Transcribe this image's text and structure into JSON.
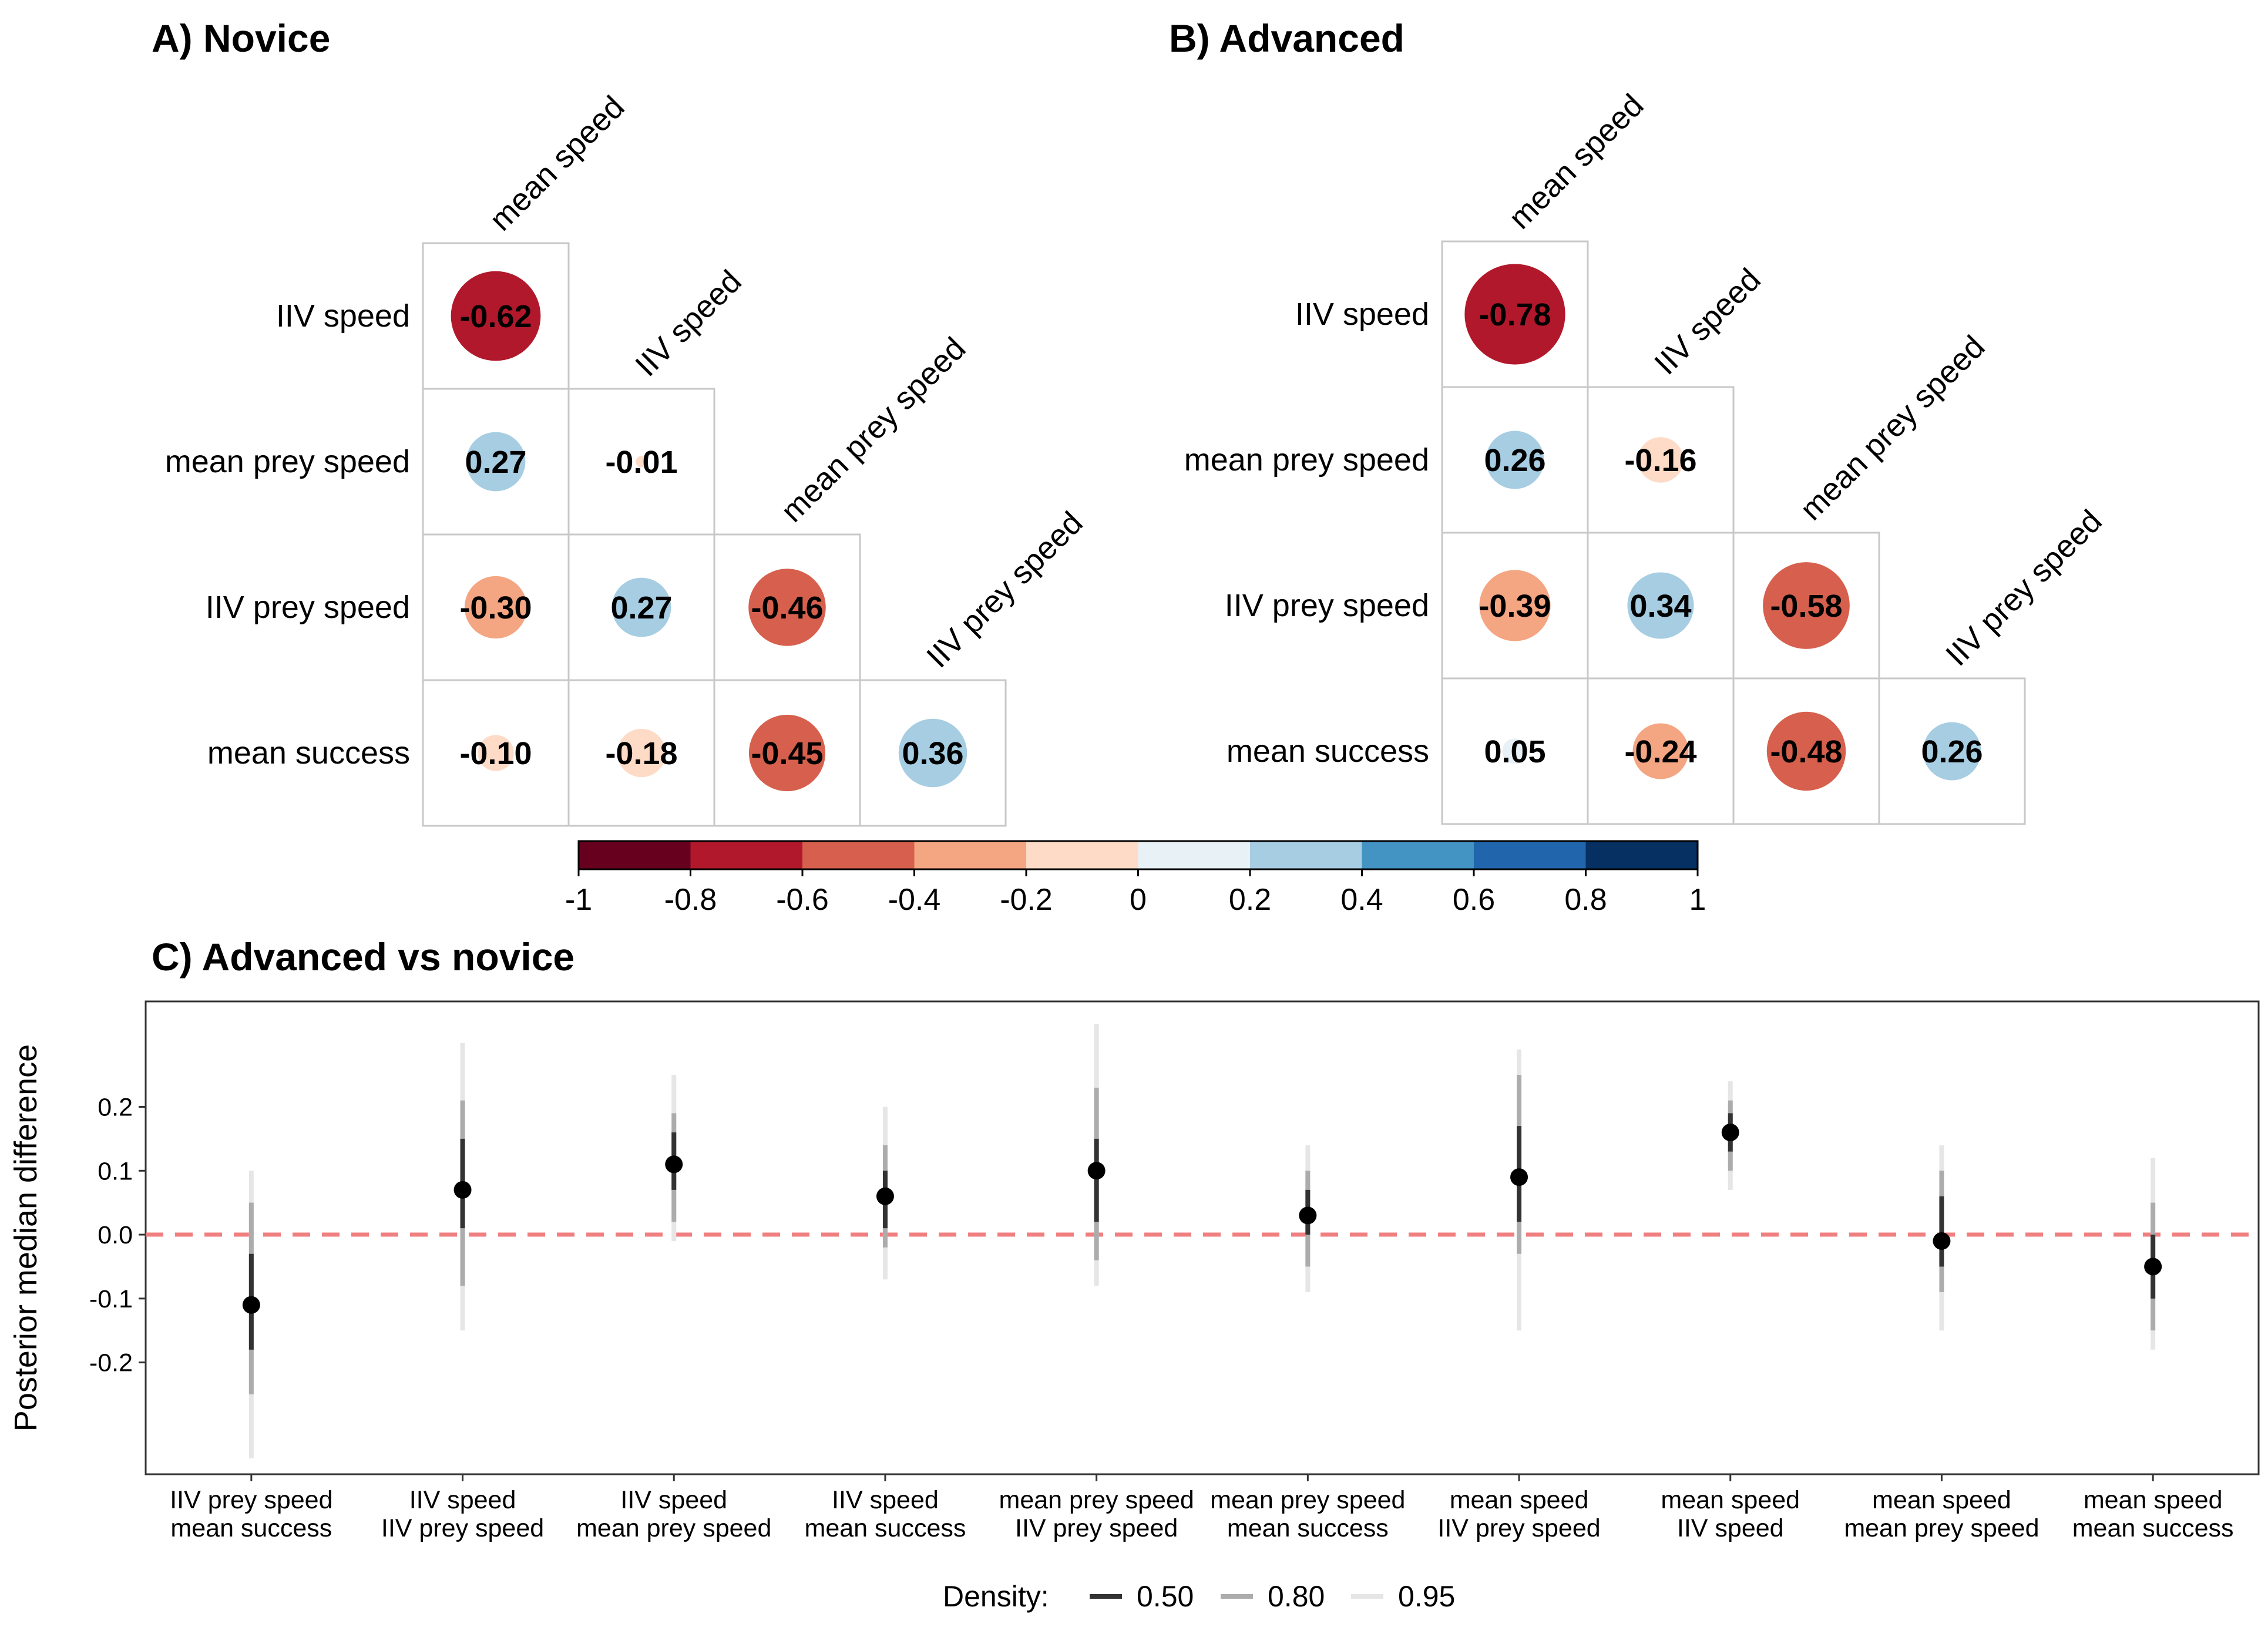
{
  "panels": {
    "a_title": "A) Novice",
    "b_title": "B) Advanced",
    "c_title": "C) Advanced vs novice"
  },
  "chart_data": [
    {
      "type": "heatmap",
      "title": "A) Novice",
      "variables": [
        "mean speed",
        "IIV speed",
        "mean prey speed",
        "IIV prey speed",
        "mean success"
      ],
      "row_labels": [
        "IIV speed",
        "mean prey speed",
        "IIV prey speed",
        "mean success"
      ],
      "column_labels": [
        "mean speed",
        "IIV speed",
        "mean prey speed",
        "IIV prey speed"
      ],
      "matrix": [
        [
          "-0.62"
        ],
        [
          "0.27",
          "-0.01"
        ],
        [
          "-0.30",
          "0.27",
          "-0.46"
        ],
        [
          "-0.10",
          "-0.18",
          "-0.45",
          "0.36"
        ]
      ]
    },
    {
      "type": "heatmap",
      "title": "B) Advanced",
      "variables": [
        "mean speed",
        "IIV speed",
        "mean prey speed",
        "IIV prey speed",
        "mean success"
      ],
      "row_labels": [
        "IIV speed",
        "mean prey speed",
        "IIV prey speed",
        "mean success"
      ],
      "column_labels": [
        "mean speed",
        "IIV speed",
        "mean prey speed",
        "IIV prey speed"
      ],
      "matrix": [
        [
          "-0.78"
        ],
        [
          "0.26",
          "-0.16"
        ],
        [
          "-0.39",
          "0.34",
          "-0.58"
        ],
        [
          "0.05",
          "-0.24",
          "-0.48",
          "0.26"
        ]
      ]
    },
    {
      "type": "scatter",
      "title": "C) Advanced vs novice",
      "xlabel": "",
      "ylabel": "Posterior median difference",
      "ylim": [
        -0.375,
        0.365
      ],
      "yticks": [
        "-0.2",
        "-0.1",
        "0.0",
        "0.1",
        "0.2"
      ],
      "reference_line": {
        "y": 0,
        "style": "dashed",
        "color": "#f08080"
      },
      "categories": [
        [
          "IIV prey speed",
          "mean success"
        ],
        [
          "IIV speed",
          "IIV prey speed"
        ],
        [
          "IIV speed",
          "mean prey speed"
        ],
        [
          "IIV speed",
          "mean success"
        ],
        [
          "mean prey speed",
          "IIV prey speed"
        ],
        [
          "mean prey speed",
          "mean success"
        ],
        [
          "mean speed",
          "IIV prey speed"
        ],
        [
          "mean speed",
          "IIV speed"
        ],
        [
          "mean speed",
          "mean prey speed"
        ],
        [
          "mean speed",
          "mean success"
        ]
      ],
      "points": [
        {
          "median": -0.11,
          "i50": [
            -0.18,
            -0.03
          ],
          "i80": [
            -0.25,
            0.05
          ],
          "i95": [
            -0.35,
            0.1
          ]
        },
        {
          "median": 0.07,
          "i50": [
            0.01,
            0.15
          ],
          "i80": [
            -0.08,
            0.21
          ],
          "i95": [
            -0.15,
            0.3
          ]
        },
        {
          "median": 0.11,
          "i50": [
            0.07,
            0.16
          ],
          "i80": [
            0.02,
            0.19
          ],
          "i95": [
            -0.01,
            0.25
          ]
        },
        {
          "median": 0.06,
          "i50": [
            0.01,
            0.1
          ],
          "i80": [
            -0.02,
            0.14
          ],
          "i95": [
            -0.07,
            0.2
          ]
        },
        {
          "median": 0.1,
          "i50": [
            0.02,
            0.15
          ],
          "i80": [
            -0.04,
            0.23
          ],
          "i95": [
            -0.08,
            0.33
          ]
        },
        {
          "median": 0.03,
          "i50": [
            0.0,
            0.07
          ],
          "i80": [
            -0.05,
            0.1
          ],
          "i95": [
            -0.09,
            0.14
          ]
        },
        {
          "median": 0.09,
          "i50": [
            0.02,
            0.17
          ],
          "i80": [
            -0.03,
            0.25
          ],
          "i95": [
            -0.15,
            0.29
          ]
        },
        {
          "median": 0.16,
          "i50": [
            0.13,
            0.19
          ],
          "i80": [
            0.1,
            0.21
          ],
          "i95": [
            0.07,
            0.24
          ]
        },
        {
          "median": -0.01,
          "i50": [
            -0.05,
            0.06
          ],
          "i80": [
            -0.09,
            0.1
          ],
          "i95": [
            -0.15,
            0.14
          ]
        },
        {
          "median": -0.05,
          "i50": [
            -0.1,
            0.0
          ],
          "i80": [
            -0.15,
            0.05
          ],
          "i95": [
            -0.18,
            0.12
          ]
        }
      ],
      "legend": {
        "title": "Density:",
        "position": "bottom",
        "items": [
          {
            "label": "0.50",
            "color": "#333333"
          },
          {
            "label": "0.80",
            "color": "#acacac"
          },
          {
            "label": "0.95",
            "color": "#e6e6e6"
          }
        ]
      }
    }
  ],
  "colorbar": {
    "ticks": [
      "-1",
      "-0.8",
      "-0.6",
      "-0.4",
      "-0.2",
      "0",
      "0.2",
      "0.4",
      "0.6",
      "0.8",
      "1"
    ],
    "colors": [
      "#67001f",
      "#b2182b",
      "#d6604d",
      "#f4a582",
      "#fddbc7",
      "#e8f1f6",
      "#a6cde2",
      "#4393c3",
      "#2166ac",
      "#053061"
    ]
  }
}
